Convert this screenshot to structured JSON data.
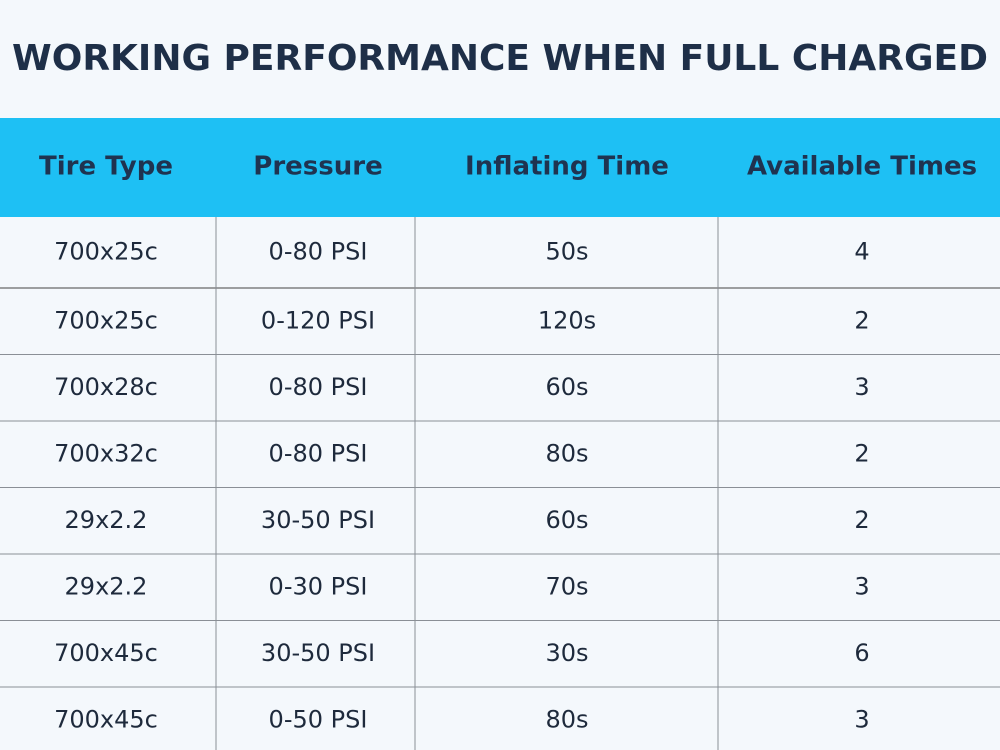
{
  "title": "WORKING PERFORMANCE WHEN FULL CHARGED",
  "table": {
    "header": [
      "Tire Type",
      "Pressure",
      "Inflating Time",
      "Available Times"
    ],
    "rows": [
      [
        "700x25c",
        "0-80 PSI",
        "50s",
        4
      ],
      [
        "700x25c",
        "0-120 PSI",
        "120s",
        2
      ],
      [
        "700x28c",
        "0-80 PSI",
        "60s",
        3
      ],
      [
        "700x32c",
        "0-80 PSI",
        "80s",
        2
      ],
      [
        "29x2.2",
        "30-50 PSI",
        "60s",
        2
      ],
      [
        "29x2.2",
        "0-30 PSI",
        "70s",
        3
      ],
      [
        "700x45c",
        "30-50 PSI",
        "30s",
        6
      ],
      [
        "700x45c",
        "0-50 PSI",
        "80s",
        3
      ]
    ]
  }
}
